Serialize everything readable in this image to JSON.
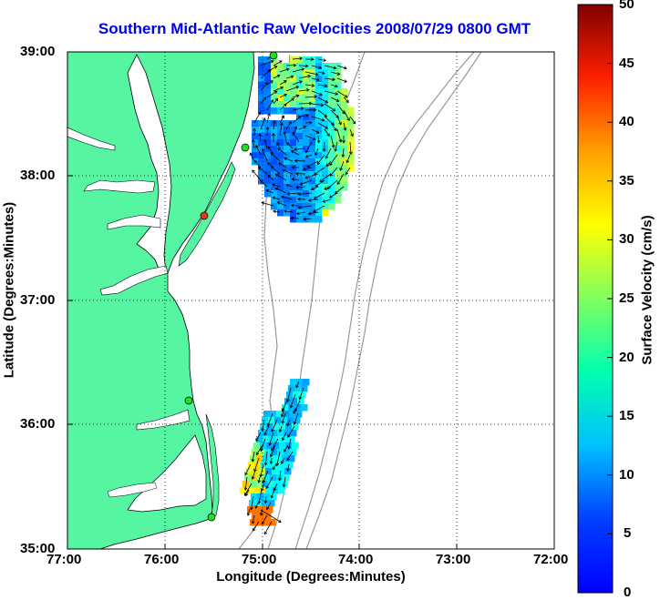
{
  "title": "Southern Mid-Atlantic Raw Velocities 2008/07/29 0800 GMT",
  "axes": {
    "x_label": "Longitude (Degrees:Minutes)",
    "y_label": "Latitude (Degrees:Minutes)",
    "x_ticks": [
      "77:00",
      "76:00",
      "75:00",
      "74:00",
      "73:00",
      "72:00"
    ],
    "y_ticks": [
      "39:00",
      "38:00",
      "37:00",
      "36:00",
      "35:00"
    ],
    "x_range_deg_west": [
      77,
      72
    ],
    "y_range_deg_north": [
      35,
      39
    ],
    "grid": "dotted"
  },
  "colorbar": {
    "label": "Surface Velocity (cm/s)",
    "ticks": [
      "50",
      "45",
      "40",
      "35",
      "30",
      "25",
      "20",
      "15",
      "10",
      "5",
      "0"
    ],
    "range": [
      0,
      50
    ],
    "colormap": "jet"
  },
  "colors": {
    "land": "#55f5a2",
    "title": "#0000ee",
    "station_marker": "#22dd22",
    "station_marker_offline": "#ee3322",
    "bathymetry": "#999999"
  },
  "map_data": {
    "region": "Southern Mid-Atlantic Bight",
    "fields": [
      {
        "name": "northern patch",
        "dominant_speed_cm_s": 14,
        "max_speed_cm_s": 32
      },
      {
        "name": "southern patch",
        "dominant_speed_cm_s": 20,
        "max_speed_cm_s": 38
      }
    ]
  }
}
